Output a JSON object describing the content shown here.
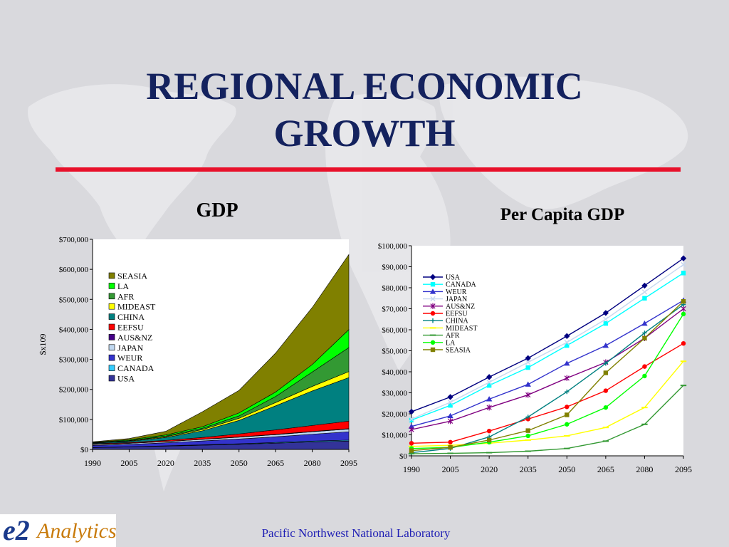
{
  "slide": {
    "title_line1": "REGIONAL ECONOMIC",
    "title_line2": "GROWTH",
    "footer": "Pacific Northwest National Laboratory",
    "logo_e2": "e2",
    "logo_word": "Analytics",
    "accent_rule_color": "#e8102a",
    "title_color": "#14225e"
  },
  "chart_data": [
    {
      "type": "area",
      "stacked": true,
      "title": "GDP",
      "xlabel": "",
      "ylabel": "$x109",
      "x": [
        "1990",
        "2005",
        "2020",
        "2035",
        "2050",
        "2065",
        "2080",
        "2095"
      ],
      "ylim": [
        0,
        700000
      ],
      "yticks": [
        0,
        100000,
        200000,
        300000,
        400000,
        500000,
        600000,
        700000
      ],
      "ytick_labels": [
        "$0",
        "$100,000",
        "$200,000",
        "$300,000",
        "$400,000",
        "$500,000",
        "$600,000",
        "$700,000"
      ],
      "legend_position": "top-left",
      "legend_order": [
        "SEASIA",
        "LA",
        "AFR",
        "MIDEAST",
        "CHINA",
        "EEFSU",
        "AUS&NZ",
        "JAPAN",
        "WEUR",
        "CANADA",
        "USA"
      ],
      "grid": false,
      "series": [
        {
          "name": "USA",
          "color": "#333399",
          "values": [
            6000,
            8000,
            11000,
            14000,
            17000,
            21000,
            25000,
            28000
          ]
        },
        {
          "name": "CANADA",
          "color": "#33ccff",
          "values": [
            600,
            800,
            1000,
            1400,
            1800,
            2200,
            2700,
            3000
          ]
        },
        {
          "name": "WEUR",
          "color": "#3333cc",
          "values": [
            7000,
            8000,
            10000,
            13000,
            16000,
            19000,
            23000,
            28000
          ]
        },
        {
          "name": "JAPAN",
          "color": "#c0d8f0",
          "values": [
            3000,
            3500,
            4000,
            5000,
            6000,
            7000,
            8000,
            9000
          ]
        },
        {
          "name": "AUS&NZ",
          "color": "#440088",
          "values": [
            300,
            400,
            500,
            600,
            800,
            1000,
            1100,
            1300
          ]
        },
        {
          "name": "EEFSU",
          "color": "#ff0000",
          "values": [
            2000,
            2300,
            3500,
            6000,
            10000,
            15000,
            20000,
            25000
          ]
        },
        {
          "name": "CHINA",
          "color": "#008080",
          "values": [
            2000,
            4000,
            10000,
            22000,
            45000,
            80000,
            115000,
            145000
          ]
        },
        {
          "name": "MIDEAST",
          "color": "#ffff00",
          "values": [
            800,
            1500,
            2500,
            4000,
            7000,
            11000,
            15000,
            20000
          ]
        },
        {
          "name": "AFR",
          "color": "#339933",
          "values": [
            800,
            1300,
            2300,
            4500,
            8000,
            20000,
            48000,
            80000
          ]
        },
        {
          "name": "LA",
          "color": "#00ff00",
          "values": [
            1500,
            2500,
            3500,
            5000,
            10000,
            15000,
            25000,
            60000
          ]
        },
        {
          "name": "SEASIA",
          "color": "#808000",
          "values": [
            1500,
            4000,
            12000,
            50000,
            75000,
            130000,
            190000,
            250000
          ]
        }
      ]
    },
    {
      "type": "line",
      "title": "Per Capita GDP",
      "xlabel": "",
      "ylabel": "",
      "x": [
        "1990",
        "2005",
        "2020",
        "2035",
        "2050",
        "2065",
        "2080",
        "2095"
      ],
      "ylim": [
        0,
        100000
      ],
      "yticks": [
        0,
        10000,
        20000,
        30000,
        40000,
        50000,
        60000,
        70000,
        80000,
        90000,
        100000
      ],
      "ytick_labels": [
        "$0",
        "$10,000",
        "$20,000",
        "$30,000",
        "$40,000",
        "$50,000",
        "$60,000",
        "$70,000",
        "$80,000",
        "$90,000",
        "$100,000"
      ],
      "legend_position": "top-left",
      "grid": false,
      "series": [
        {
          "name": "USA",
          "color": "#000080",
          "marker": "diamond",
          "values": [
            21000,
            28000,
            37500,
            46500,
            57000,
            68000,
            81000,
            94000
          ]
        },
        {
          "name": "CANADA",
          "color": "#00ffff",
          "marker": "square",
          "values": [
            17000,
            24000,
            33500,
            42000,
            52500,
            63000,
            75000,
            87000
          ]
        },
        {
          "name": "WEUR",
          "color": "#3333cc",
          "marker": "triangle",
          "values": [
            14000,
            19000,
            27000,
            34000,
            44000,
            52500,
            63000,
            74000
          ]
        },
        {
          "name": "JAPAN",
          "color": "#c8d8f0",
          "marker": "x",
          "values": [
            17500,
            25500,
            35000,
            44500,
            54000,
            65000,
            78000,
            91000
          ]
        },
        {
          "name": "AUS&NZ",
          "color": "#800080",
          "marker": "star",
          "values": [
            12500,
            16500,
            23000,
            29000,
            37000,
            44500,
            56000,
            70000
          ]
        },
        {
          "name": "EEFSU",
          "color": "#ff0000",
          "marker": "circle",
          "values": [
            6000,
            6500,
            11800,
            17500,
            23300,
            31000,
            42500,
            53500
          ]
        },
        {
          "name": "CHINA",
          "color": "#008080",
          "marker": "plus",
          "values": [
            1500,
            3500,
            9000,
            18500,
            30500,
            44000,
            58500,
            72000
          ]
        },
        {
          "name": "MIDEAST",
          "color": "#ffff00",
          "marker": "dash",
          "values": [
            4500,
            5000,
            6000,
            7500,
            9500,
            13500,
            23000,
            45000
          ]
        },
        {
          "name": "AFR",
          "color": "#339933",
          "marker": "dash",
          "values": [
            1000,
            1200,
            1500,
            2200,
            3500,
            7000,
            15000,
            33500
          ]
        },
        {
          "name": "LA",
          "color": "#00ff00",
          "marker": "circle",
          "values": [
            3500,
            4000,
            6500,
            9500,
            15000,
            23000,
            38000,
            67500
          ]
        },
        {
          "name": "SEASIA",
          "color": "#808000",
          "marker": "square",
          "values": [
            2500,
            4000,
            7500,
            12000,
            19500,
            39500,
            56000,
            73500
          ]
        }
      ]
    }
  ]
}
